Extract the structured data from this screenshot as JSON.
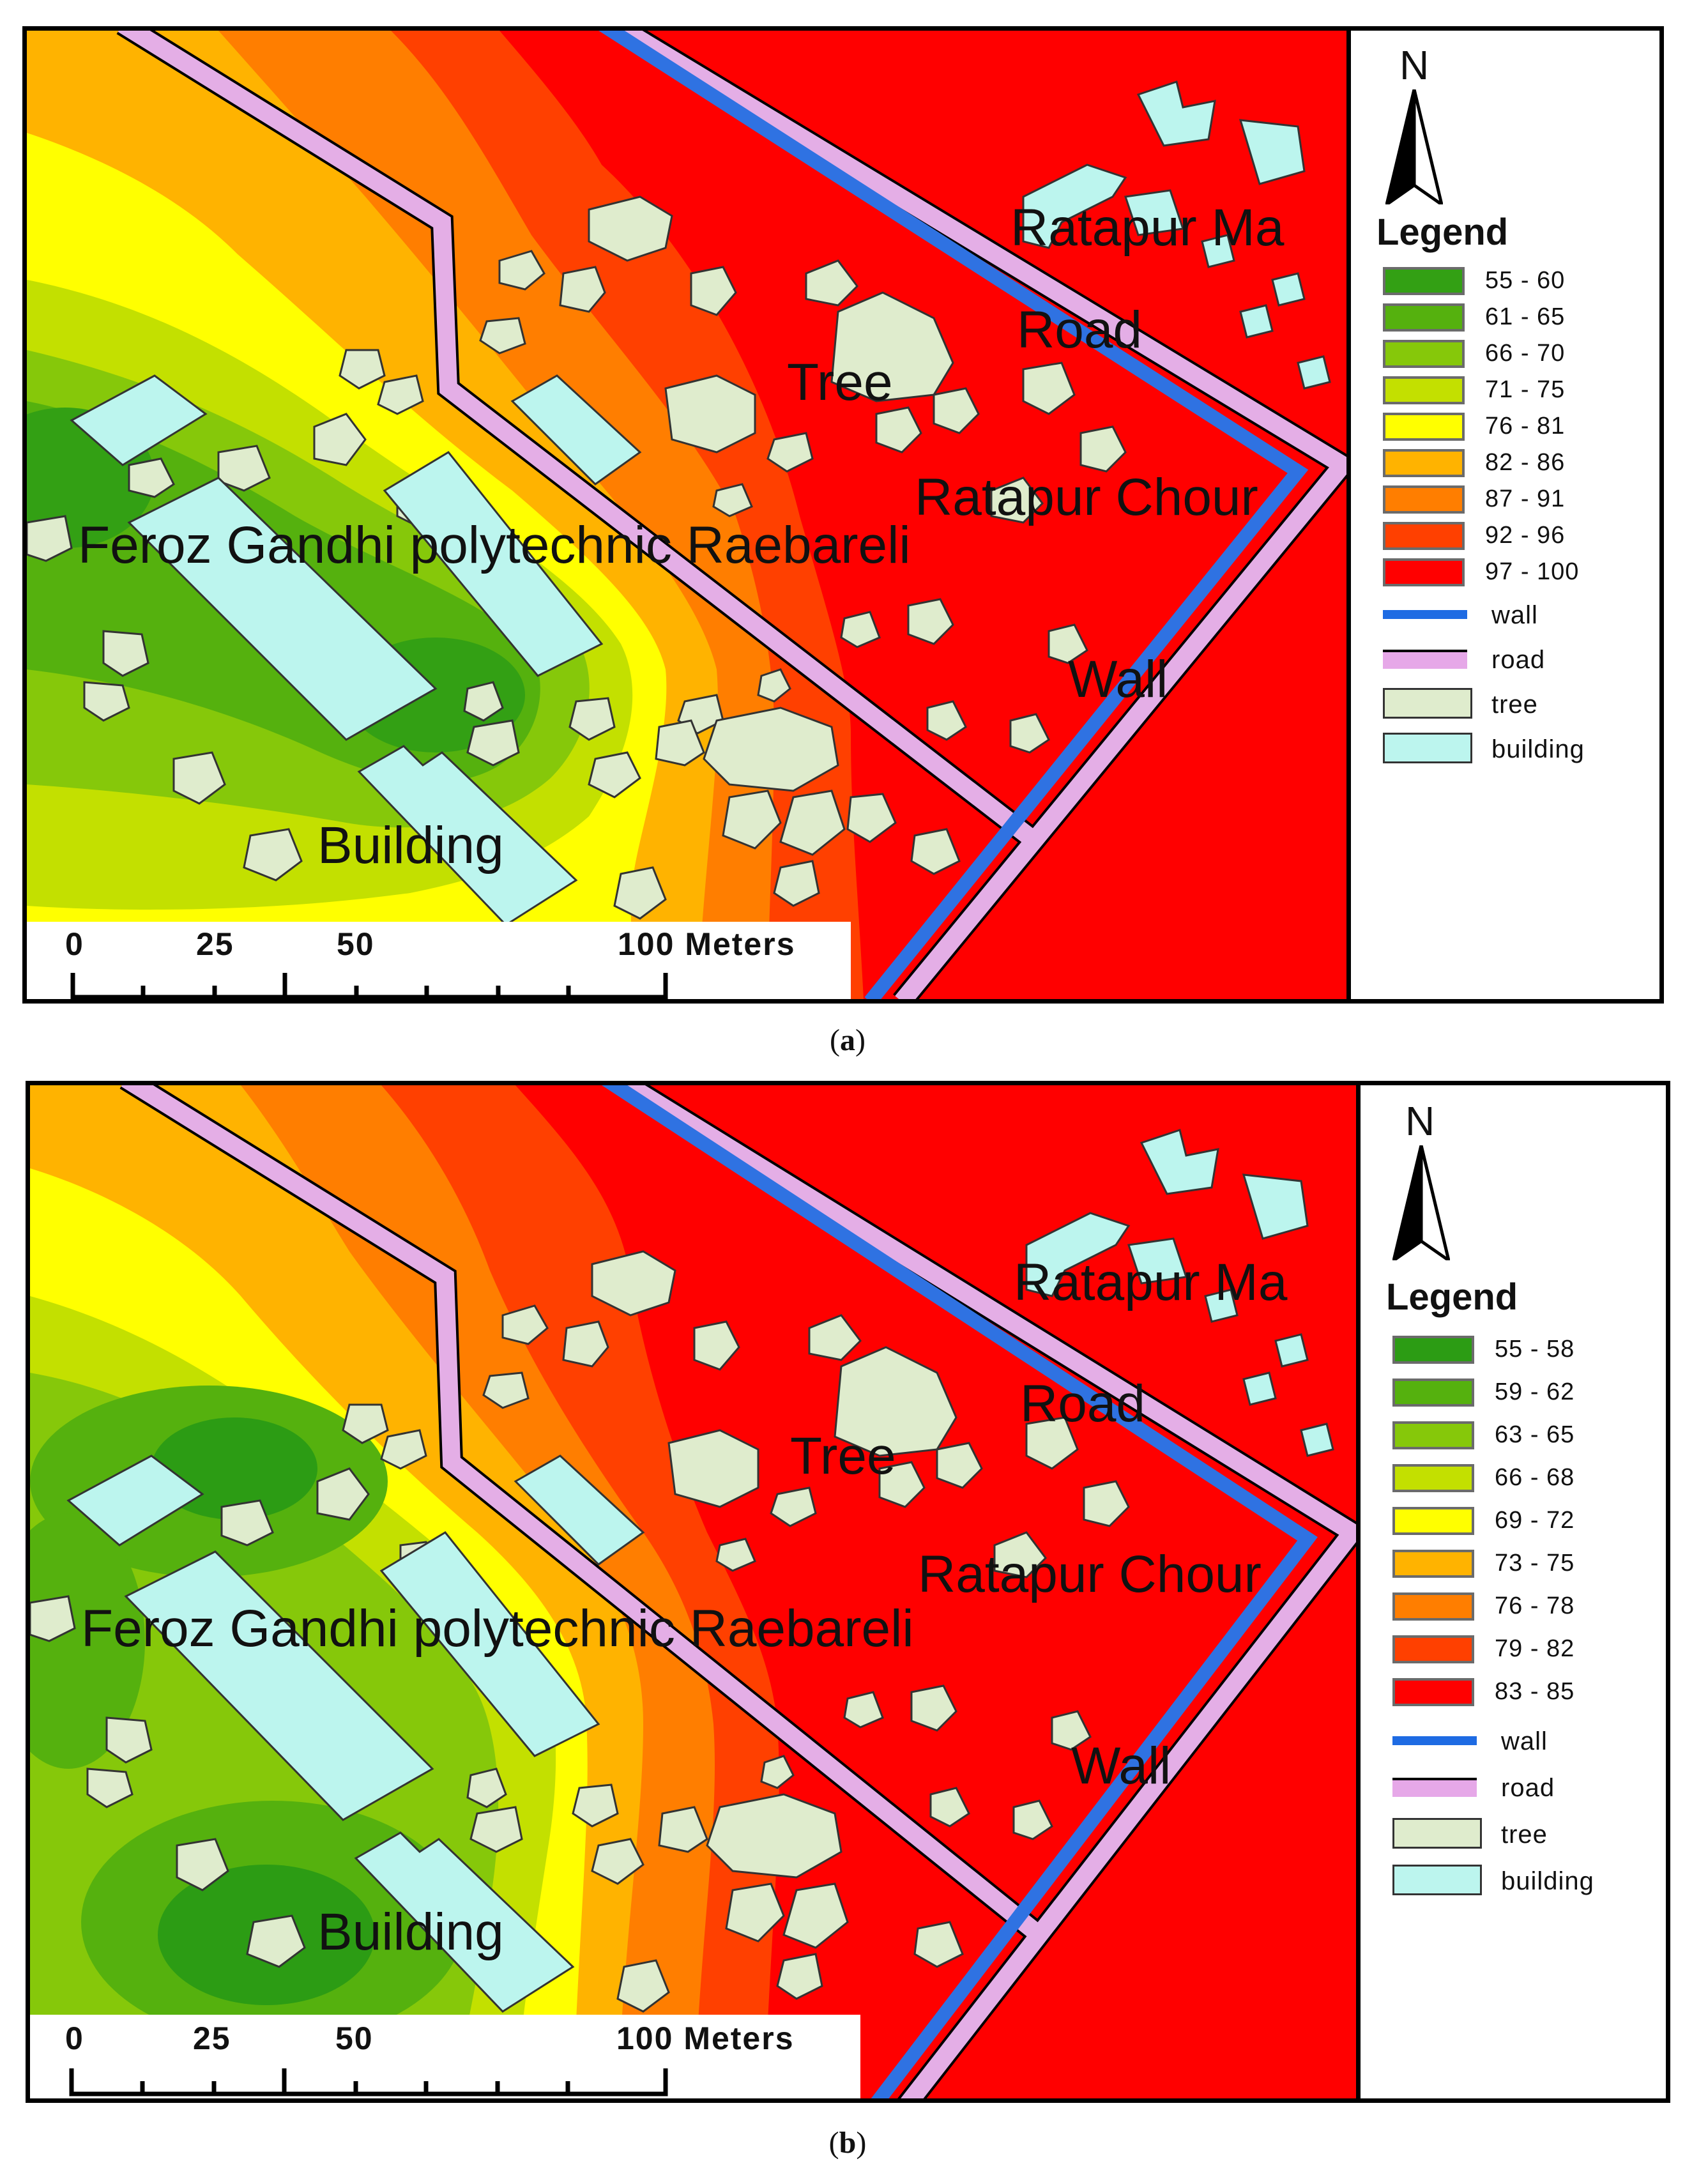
{
  "colors": {
    "road_fill": "#e4aee6",
    "wall_line": "#2f72e2",
    "tree_fill": "#dfeccd",
    "building_fill": "#bcf5ee",
    "outline": "#333333"
  },
  "map_labels": {
    "ratapur_ma": "Ratapur Ma",
    "road": "Road",
    "tree": "Tree",
    "ratapur_chour": "Ratapur Chour",
    "polytechnic": "Feroz Gandhi polytechnic Raebareli",
    "wall": "Wall",
    "building": "Building"
  },
  "scalebar": {
    "ticks": [
      "0",
      "25",
      "50",
      "100 Meters"
    ]
  },
  "north_arrow": {
    "label": "N",
    "icon": "north-arrow-icon"
  },
  "panels": [
    {
      "id": "a",
      "caption": "a",
      "legend": {
        "title": "Legend",
        "classes": [
          {
            "label": "55 - 60",
            "color": "#33a014"
          },
          {
            "label": "61 - 65",
            "color": "#55b10e"
          },
          {
            "label": "66 - 70",
            "color": "#86c80a"
          },
          {
            "label": "71 - 75",
            "color": "#c3e000"
          },
          {
            "label": "76 - 81",
            "color": "#ffff00"
          },
          {
            "label": "82 - 86",
            "color": "#ffb300"
          },
          {
            "label": "87 - 91",
            "color": "#ff7e00"
          },
          {
            "label": "92 - 96",
            "color": "#ff4000"
          },
          {
            "label": "97 - 100",
            "color": "#ff0000"
          }
        ],
        "features": [
          {
            "label": "wall",
            "kind": "line",
            "color": "#1e6be3"
          },
          {
            "label": "road",
            "kind": "road",
            "color": "#e6a8e8"
          },
          {
            "label": "tree",
            "kind": "poly",
            "color": "#dfeccd"
          },
          {
            "label": "building",
            "kind": "poly",
            "color": "#bcf5ee"
          }
        ]
      }
    },
    {
      "id": "b",
      "caption": "b",
      "legend": {
        "title": "Legend",
        "classes": [
          {
            "label": "55 - 58",
            "color": "#2c9c14"
          },
          {
            "label": "59 - 62",
            "color": "#55b10e"
          },
          {
            "label": "63 - 65",
            "color": "#86c80a"
          },
          {
            "label": "66 - 68",
            "color": "#c3e000"
          },
          {
            "label": "69 - 72",
            "color": "#ffff00"
          },
          {
            "label": "73 - 75",
            "color": "#ffb300"
          },
          {
            "label": "76 - 78",
            "color": "#ff7e00"
          },
          {
            "label": "79 - 82",
            "color": "#ff4000"
          },
          {
            "label": "83 - 85",
            "color": "#ff0000"
          }
        ],
        "features": [
          {
            "label": "wall",
            "kind": "line",
            "color": "#1e6be3"
          },
          {
            "label": "road",
            "kind": "road",
            "color": "#e6a8e8"
          },
          {
            "label": "tree",
            "kind": "poly",
            "color": "#dfeccd"
          },
          {
            "label": "building",
            "kind": "poly",
            "color": "#bcf5ee"
          }
        ]
      }
    }
  ]
}
